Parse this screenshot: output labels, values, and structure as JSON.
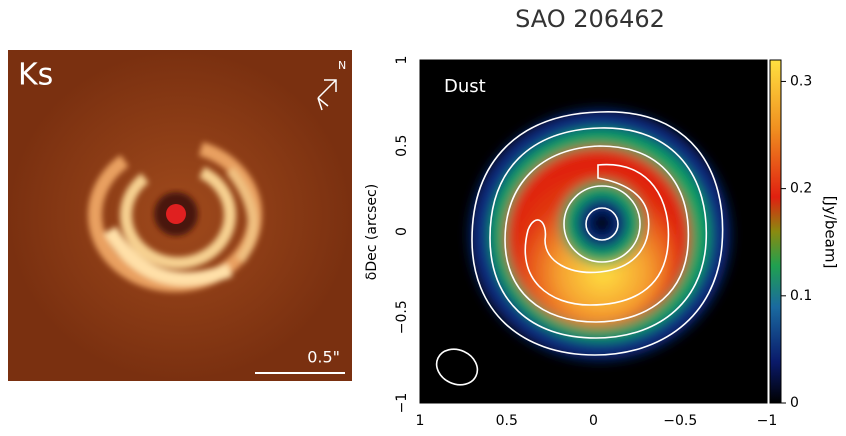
{
  "chart_data": [
    {
      "type": "image",
      "band": "Ks",
      "north": "N",
      "scale_bar": "0.5\""
    },
    {
      "type": "heatmap",
      "title": "SAO 206462",
      "label": "Dust",
      "ylabel": "δDec (arcsec)",
      "xlim": [
        1,
        -1
      ],
      "ylim": [
        -1,
        1
      ],
      "xticks": [
        1,
        0.5,
        0,
        {
          "value": -0.5,
          "label": "−0.5"
        },
        {
          "value": -1,
          "label": "−1"
        }
      ],
      "yticks": [
        {
          "value": -1,
          "label": "−1"
        },
        {
          "value": -0.5,
          "label": "−0.5"
        },
        0,
        0.5,
        1
      ],
      "colorbar_label": "[Jy/beam]",
      "clim": [
        0,
        0.32
      ],
      "cticks": [
        0,
        0.1,
        0.2,
        0.3
      ]
    }
  ]
}
